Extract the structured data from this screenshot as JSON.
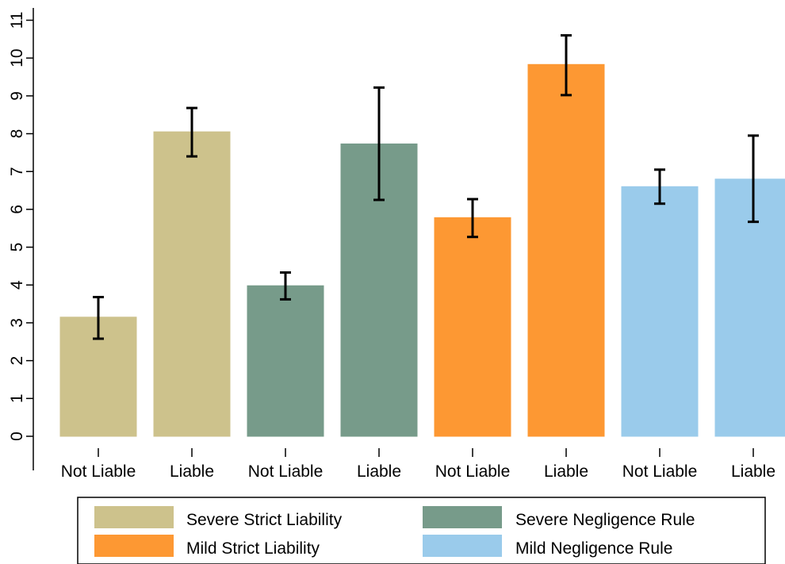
{
  "chart_data": {
    "type": "bar",
    "title": "",
    "xlabel": "",
    "ylabel": "",
    "ylim": [
      0,
      11
    ],
    "yticks": [
      0,
      1,
      2,
      3,
      4,
      5,
      6,
      7,
      8,
      9,
      10,
      11
    ],
    "grid": false,
    "legend_position": "bottom",
    "categories": [
      "Not Liable",
      "Liable",
      "Not Liable",
      "Liable",
      "Not Liable",
      "Liable",
      "Not Liable",
      "Liable"
    ],
    "bars": [
      {
        "category": "Not Liable",
        "group": "Severe Strict Liability",
        "value": 3.15,
        "ci_low": 2.58,
        "ci_high": 3.68
      },
      {
        "category": "Liable",
        "group": "Severe Strict Liability",
        "value": 8.05,
        "ci_low": 7.4,
        "ci_high": 8.68
      },
      {
        "category": "Not Liable",
        "group": "Severe Negligence Rule",
        "value": 3.98,
        "ci_low": 3.62,
        "ci_high": 4.33
      },
      {
        "category": "Liable",
        "group": "Severe Negligence Rule",
        "value": 7.73,
        "ci_low": 6.25,
        "ci_high": 9.22
      },
      {
        "category": "Not Liable",
        "group": "Mild Strict Liability",
        "value": 5.78,
        "ci_low": 5.27,
        "ci_high": 6.27
      },
      {
        "category": "Liable",
        "group": "Mild Strict Liability",
        "value": 9.83,
        "ci_low": 9.02,
        "ci_high": 10.6
      },
      {
        "category": "Not Liable",
        "group": "Mild Negligence Rule",
        "value": 6.6,
        "ci_low": 6.15,
        "ci_high": 7.05
      },
      {
        "category": "Liable",
        "group": "Mild Negligence Rule",
        "value": 6.8,
        "ci_low": 5.67,
        "ci_high": 7.95
      }
    ],
    "legend": [
      {
        "name": "Severe Strict Liability",
        "color": "#cdc28c"
      },
      {
        "name": "Severe Negligence Rule",
        "color": "#779b8a"
      },
      {
        "name": "Mild Strict Liability",
        "color": "#fd9833"
      },
      {
        "name": "Mild Negligence Rule",
        "color": "#9acbeb"
      }
    ]
  }
}
